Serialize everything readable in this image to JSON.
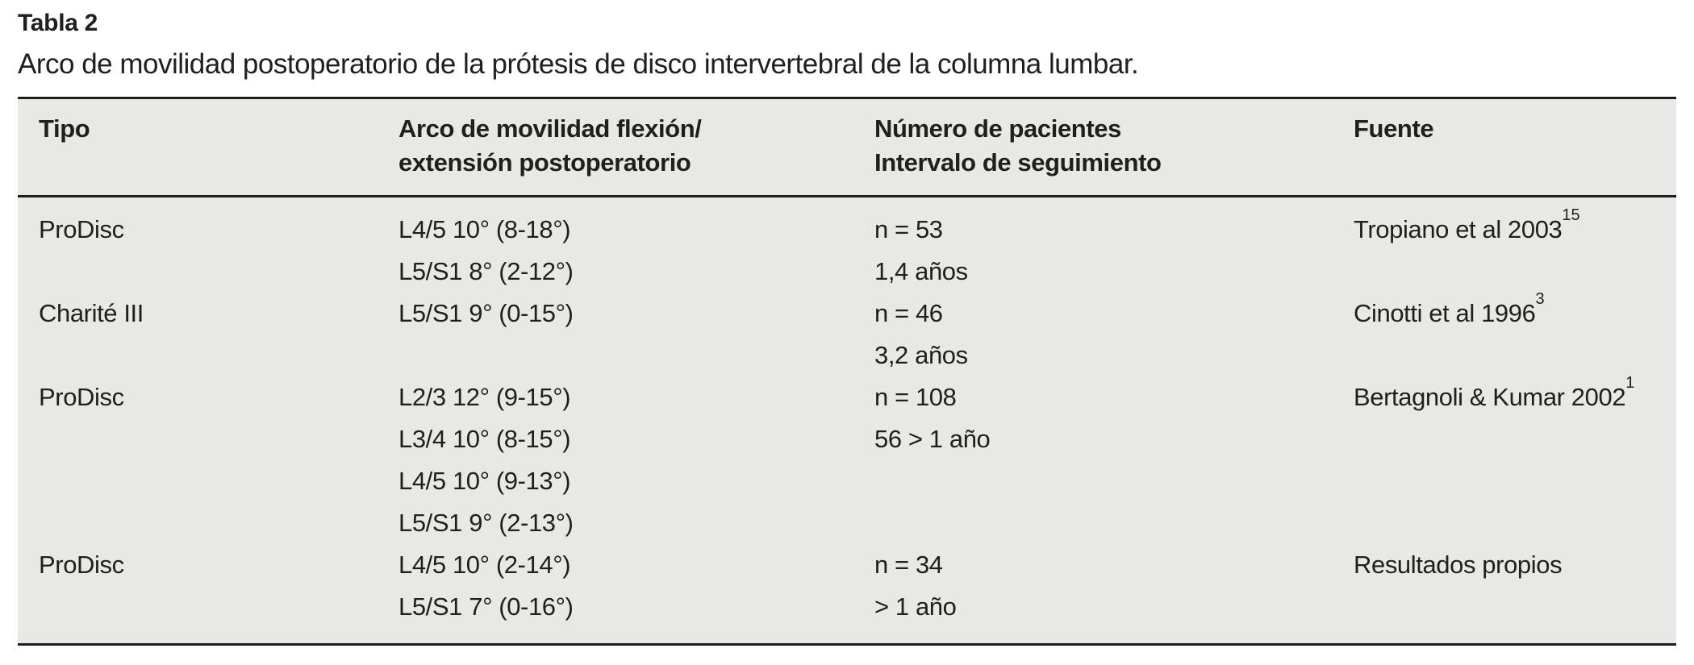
{
  "colors": {
    "table_bg": "#e8e8e7",
    "rule": "#1d1d1b",
    "text": "#1f1f1e",
    "page_bg": "#ffffff"
  },
  "title": "Tabla 2",
  "caption": "Arco de movilidad postoperatorio de la prótesis de disco intervertebral de la columna lumbar.",
  "table": {
    "headers": {
      "tipo": [
        "Tipo"
      ],
      "arco": [
        "Arco de movilidad flexión/",
        "extensión postoperatorio"
      ],
      "pacientes": [
        "Número de pacientes",
        "Intervalo de seguimiento"
      ],
      "fuente": [
        "Fuente"
      ]
    },
    "rows": [
      {
        "tipo": "ProDisc",
        "arco": [
          "L4/5 10° (8-18°)",
          "L5/S1 8° (2-12°)"
        ],
        "pacientes": [
          "n = 53",
          "1,4 años"
        ],
        "fuente": "Tropiano et al 2003",
        "fuente_sup": "15"
      },
      {
        "tipo": "Charité III",
        "arco": [
          "L5/S1 9° (0-15°)"
        ],
        "pacientes": [
          "n = 46",
          "3,2 años"
        ],
        "fuente": "Cinotti et al 1996",
        "fuente_sup": "3"
      },
      {
        "tipo": "ProDisc",
        "arco": [
          "L2/3 12° (9-15°)",
          "L3/4 10° (8-15°)",
          "L4/5 10° (9-13°)",
          "L5/S1 9° (2-13°)"
        ],
        "pacientes": [
          "n = 108",
          "56 > 1 año"
        ],
        "fuente": "Bertagnoli & Kumar 2002",
        "fuente_sup": "1"
      },
      {
        "tipo": "ProDisc",
        "arco": [
          "L4/5 10° (2-14°)",
          "L5/S1 7° (0-16°)"
        ],
        "pacientes": [
          "n = 34",
          "> 1 año"
        ],
        "fuente": "Resultados propios",
        "fuente_sup": ""
      }
    ]
  }
}
